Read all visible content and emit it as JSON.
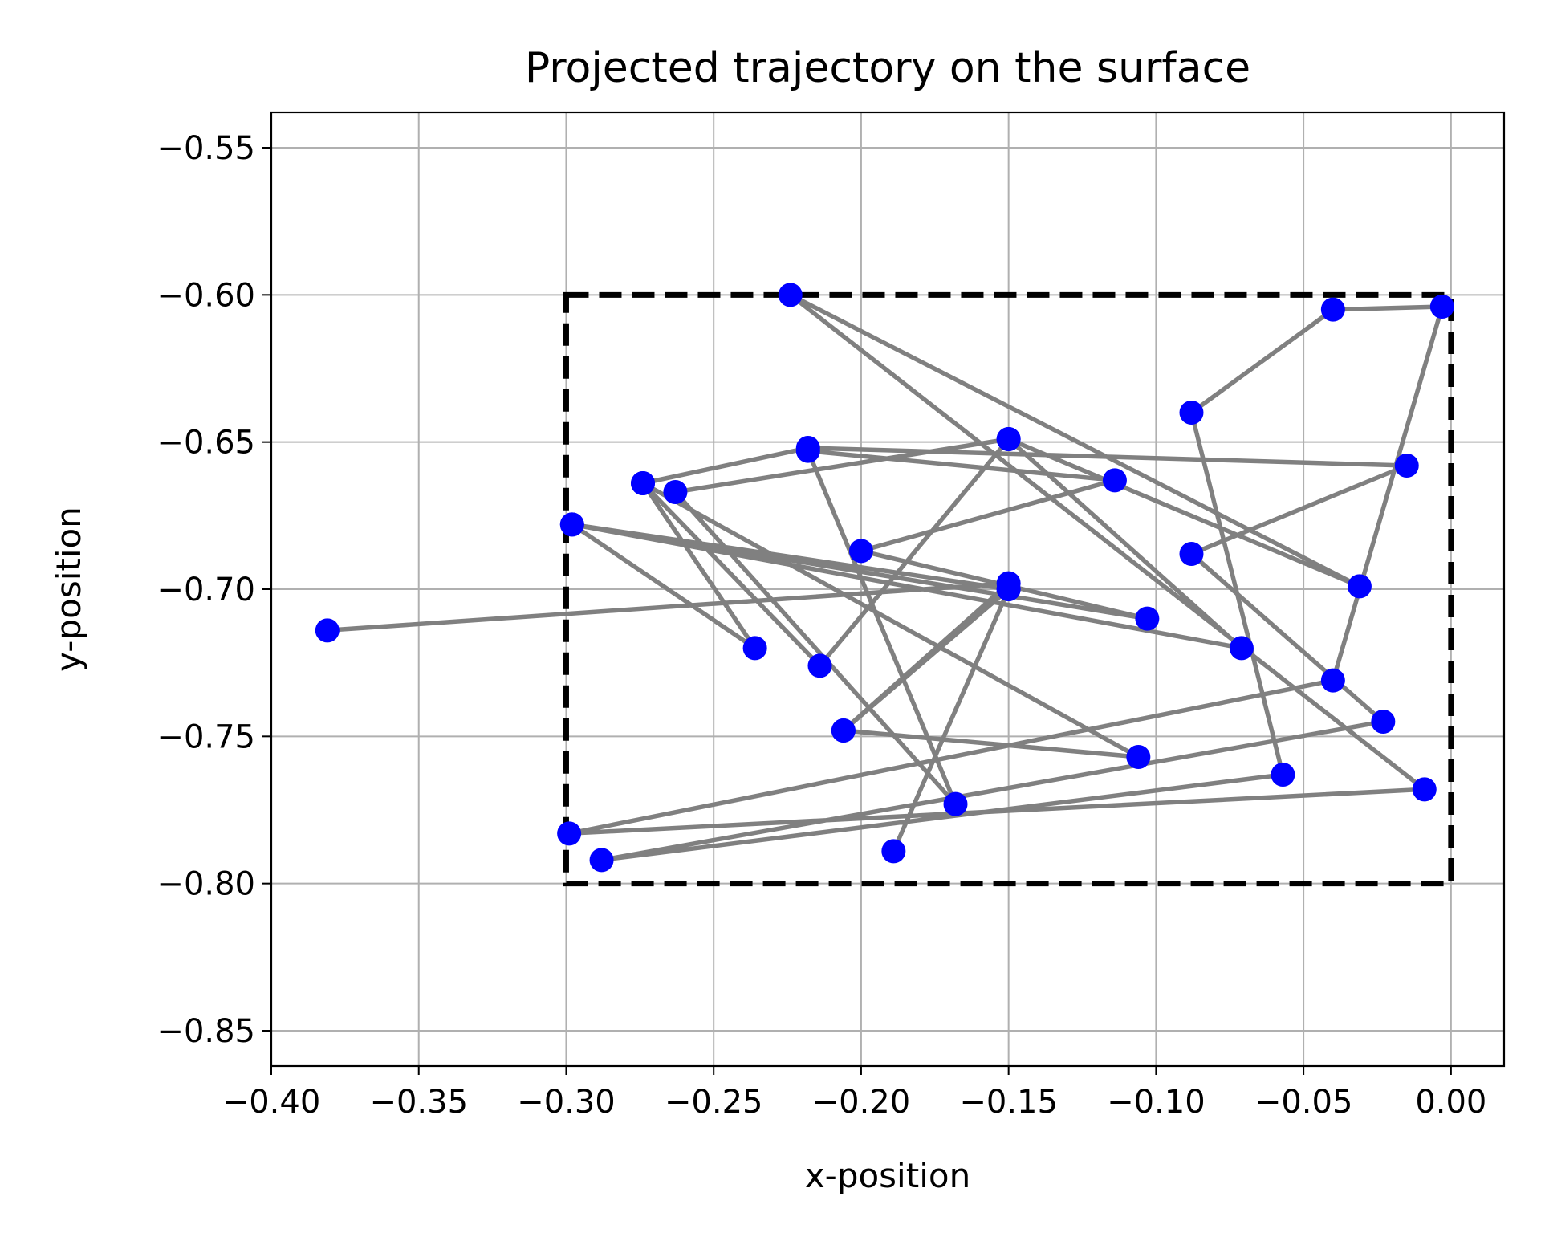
{
  "chart_data": {
    "type": "line",
    "title": "Projected trajectory on the surface",
    "xlabel": "x-position",
    "ylabel": "y-position",
    "xlim": [
      -0.4,
      0.018
    ],
    "ylim": [
      -0.862,
      -0.538
    ],
    "grid": true,
    "x_ticks": [
      {
        "value": -0.4,
        "label": "−0.40"
      },
      {
        "value": -0.35,
        "label": "−0.35"
      },
      {
        "value": -0.3,
        "label": "−0.30"
      },
      {
        "value": -0.25,
        "label": "−0.25"
      },
      {
        "value": -0.2,
        "label": "−0.20"
      },
      {
        "value": -0.15,
        "label": "−0.15"
      },
      {
        "value": -0.1,
        "label": "−0.10"
      },
      {
        "value": -0.05,
        "label": "−0.05"
      },
      {
        "value": 0.0,
        "label": "0.00"
      }
    ],
    "y_ticks": [
      {
        "value": -0.55,
        "label": "−0.55"
      },
      {
        "value": -0.6,
        "label": "−0.60"
      },
      {
        "value": -0.65,
        "label": "−0.65"
      },
      {
        "value": -0.7,
        "label": "−0.70"
      },
      {
        "value": -0.75,
        "label": "−0.75"
      },
      {
        "value": -0.8,
        "label": "−0.80"
      },
      {
        "value": -0.85,
        "label": "−0.85"
      }
    ],
    "boundary_box": {
      "x0": -0.3,
      "x1": 0.0,
      "y0": -0.8,
      "y1": -0.6,
      "color": "#000000",
      "style": "dashed"
    },
    "series": [
      {
        "line_color": "#808080",
        "marker_color": "#0000ff",
        "points": [
          [
            -0.381,
            -0.714
          ],
          [
            -0.15,
            -0.698
          ],
          [
            -0.206,
            -0.748
          ],
          [
            -0.15,
            -0.7
          ],
          [
            -0.189,
            -0.789
          ],
          [
            -0.15,
            -0.7
          ],
          [
            -0.298,
            -0.678
          ],
          [
            -0.103,
            -0.71
          ],
          [
            -0.2,
            -0.687
          ],
          [
            -0.114,
            -0.663
          ],
          [
            -0.218,
            -0.653
          ],
          [
            -0.168,
            -0.773
          ],
          [
            -0.263,
            -0.667
          ],
          [
            -0.15,
            -0.649
          ],
          [
            -0.031,
            -0.699
          ],
          [
            -0.224,
            -0.6
          ],
          [
            -0.009,
            -0.768
          ],
          [
            -0.299,
            -0.783
          ],
          [
            -0.04,
            -0.731
          ],
          [
            -0.003,
            -0.604
          ],
          [
            -0.04,
            -0.605
          ],
          [
            -0.088,
            -0.64
          ],
          [
            -0.057,
            -0.763
          ],
          [
            -0.288,
            -0.792
          ],
          [
            -0.023,
            -0.745
          ],
          [
            -0.088,
            -0.688
          ],
          [
            -0.015,
            -0.658
          ],
          [
            -0.218,
            -0.652
          ],
          [
            -0.274,
            -0.664
          ],
          [
            -0.236,
            -0.72
          ],
          [
            -0.298,
            -0.678
          ],
          [
            -0.071,
            -0.72
          ],
          [
            -0.15,
            -0.649
          ],
          [
            -0.214,
            -0.726
          ],
          [
            -0.274,
            -0.664
          ],
          [
            -0.106,
            -0.757
          ],
          [
            -0.206,
            -0.748
          ]
        ]
      }
    ]
  }
}
